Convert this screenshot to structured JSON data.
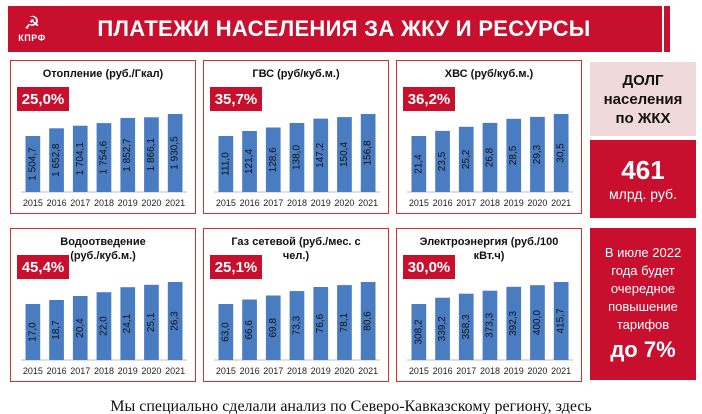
{
  "header": {
    "logo_star": "☭",
    "logo_text": "КПРФ",
    "title": "ПЛАТЕЖИ НАСЕЛЕНИЯ ЗА ЖКУ И РЕСУРСЫ"
  },
  "colors": {
    "bar": "#4a7cc2",
    "accent": "#c8102e",
    "panel_border": "#d9302f"
  },
  "chart_data": [
    {
      "type": "bar",
      "title": "Отопление (руб./Гкал)",
      "percent": "25,0%",
      "categories": [
        "2015",
        "2016",
        "2017",
        "2018",
        "2019",
        "2020",
        "2021"
      ],
      "labels": [
        "1 504,7",
        "1 652,8",
        "1 704,1",
        "1 754,6",
        "1 852,7",
        "1 866,1",
        "1 930,5"
      ],
      "values": [
        1504.7,
        1652.8,
        1704.1,
        1754.6,
        1852.7,
        1866.1,
        1930.5
      ]
    },
    {
      "type": "bar",
      "title": "ГВС (руб/куб.м.)",
      "percent": "35,7%",
      "categories": [
        "2015",
        "2016",
        "2017",
        "2018",
        "2019",
        "2020",
        "2021"
      ],
      "labels": [
        "111,0",
        "121,4",
        "128,6",
        "138,0",
        "147,2",
        "150,4",
        "156,8"
      ],
      "values": [
        111.0,
        121.4,
        128.6,
        138.0,
        147.2,
        150.4,
        156.8
      ]
    },
    {
      "type": "bar",
      "title": "ХВС (руб/куб.м.)",
      "percent": "36,2%",
      "categories": [
        "2015",
        "2016",
        "2017",
        "2018",
        "2019",
        "2020",
        "2021"
      ],
      "labels": [
        "21,4",
        "23,5",
        "25,2",
        "26,8",
        "28,5",
        "29,3",
        "30,5"
      ],
      "values": [
        21.4,
        23.5,
        25.2,
        26.8,
        28.5,
        29.3,
        30.5
      ]
    },
    {
      "type": "bar",
      "title": "Водоотведение (руб./куб.м.)",
      "title_lines": [
        "Водоотведение",
        "(руб./куб.м.)"
      ],
      "percent": "45,4%",
      "categories": [
        "2015",
        "2016",
        "2017",
        "2018",
        "2019",
        "2020",
        "2021"
      ],
      "labels": [
        "17,0",
        "18,7",
        "20,4",
        "22,0",
        "24,1",
        "25,1",
        "26,3"
      ],
      "values": [
        17.0,
        18.7,
        20.4,
        22.0,
        24.1,
        25.1,
        26.3
      ]
    },
    {
      "type": "bar",
      "title": "Газ сетевой (руб./мес. с чел.)",
      "title_lines": [
        "Газ сетевой (руб./мес. с",
        "чел.)"
      ],
      "percent": "25,1%",
      "categories": [
        "2015",
        "2016",
        "2017",
        "2018",
        "2019",
        "2020",
        "2021"
      ],
      "labels": [
        "63,0",
        "66,6",
        "69,8",
        "73,3",
        "76,6",
        "78,1",
        "80,6"
      ],
      "values": [
        63.0,
        66.6,
        69.8,
        73.3,
        76.6,
        78.1,
        80.6
      ]
    },
    {
      "type": "bar",
      "title": "Электроэнергия (руб./100 кВт.ч)",
      "title_lines": [
        "Электроэнергия (руб./100",
        "кВт.ч)"
      ],
      "percent": "30,0%",
      "categories": [
        "2015",
        "2016",
        "2017",
        "2018",
        "2019",
        "2020",
        "2021"
      ],
      "labels": [
        "308,2",
        "339,2",
        "358,3",
        "373,3",
        "392,3",
        "400,0",
        "415,7"
      ],
      "values": [
        308.2,
        339.2,
        358.3,
        373.3,
        392.3,
        400.0,
        415.7
      ]
    }
  ],
  "side": {
    "debt_label_lines": [
      "ДОЛГ",
      "населения",
      "по ЖКХ"
    ],
    "debt_value": "461",
    "debt_unit": "млрд. руб.",
    "tariff_lines": [
      "В июле 2022",
      "года будет",
      "очередное",
      "повышение",
      "тарифов"
    ],
    "tariff_big": "до 7%"
  },
  "bottom_text": "Мы специально сделали анализ по Северо-Кавказскому региону, здесь"
}
